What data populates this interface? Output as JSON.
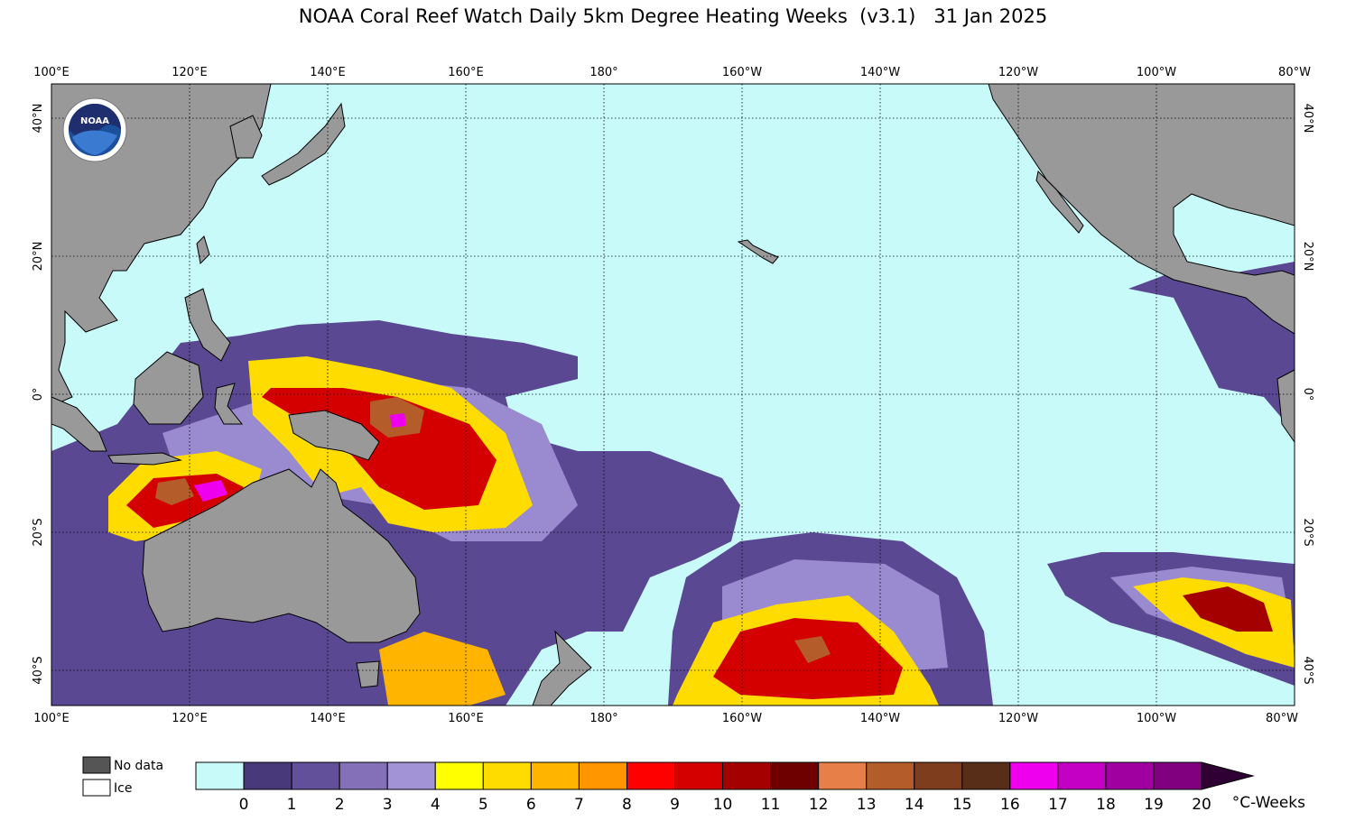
{
  "title": "NOAA Coral Reef Watch Daily 5km Degree Heating Weeks  (v3.1)   31 Jan 2025",
  "map": {
    "lon_labels": [
      "100°E",
      "120°E",
      "140°E",
      "160°E",
      "180°",
      "160°W",
      "140°W",
      "120°W",
      "100°W",
      "80°W"
    ],
    "lat_labels": [
      "40°N",
      "20°N",
      "0°",
      "20°S",
      "40°S"
    ],
    "ocean_color": "#c8fafa",
    "land_color": "#999999",
    "logo_text": "NOAA"
  },
  "legend": {
    "no_data_label": "No data",
    "ice_label": "Ice",
    "no_data_color": "#555555",
    "ice_color": "#ffffff"
  },
  "colorbar": {
    "unit": "°C-Weeks",
    "tick_labels": [
      "0",
      "1",
      "2",
      "3",
      "4",
      "5",
      "6",
      "7",
      "8",
      "9",
      "10",
      "11",
      "12",
      "13",
      "14",
      "15",
      "16",
      "17",
      "18",
      "19",
      "20"
    ],
    "colors": [
      "#c8fafa",
      "#483a7a",
      "#63509a",
      "#8470b8",
      "#a292d6",
      "#ffff00",
      "#ffdc00",
      "#ffb400",
      "#ff9600",
      "#ff0000",
      "#d40000",
      "#a40000",
      "#6e0000",
      "#e68048",
      "#b45c2a",
      "#7e3e1e",
      "#582e18",
      "#ee00ee",
      "#c400c4",
      "#a000a0",
      "#800080"
    ],
    "overflow_color": "#2e0033"
  }
}
